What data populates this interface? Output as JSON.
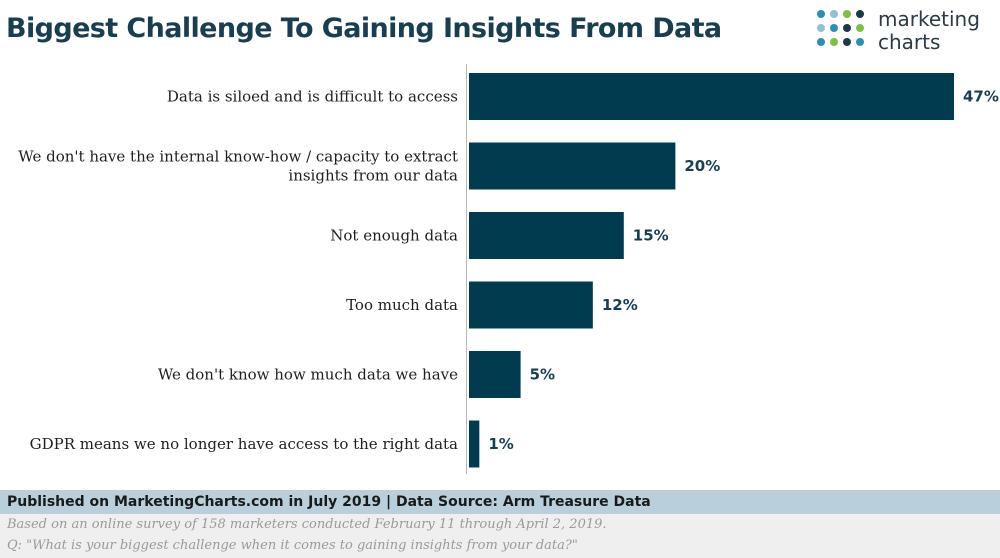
{
  "header": {
    "title": "Biggest Challenge To Gaining Insights From Data",
    "logo": {
      "line1": "marketing",
      "line2": "charts",
      "dot_colors": [
        "#2a8fb3",
        "#7cc242",
        "#1a3a4c",
        "#8fc1d6"
      ]
    }
  },
  "colors": {
    "bar": "#003b50",
    "title": "#173f51",
    "value": "#173f51"
  },
  "chart_data": {
    "type": "bar",
    "orientation": "horizontal",
    "title": "Biggest Challenge To Gaining Insights From Data",
    "xlabel": "",
    "ylabel": "",
    "unit": "%",
    "xlim": [
      0,
      47
    ],
    "grid": false,
    "categories": [
      [
        "Data is siloed and is difficult to access"
      ],
      [
        "We don't have the internal know-how / capacity to extract",
        "insights from our data"
      ],
      [
        "Not enough data"
      ],
      [
        "Too much data"
      ],
      [
        "We don't know how much data we have"
      ],
      [
        "GDPR means we no longer have access to the right data"
      ]
    ],
    "values": [
      47,
      20,
      15,
      12,
      5,
      1
    ],
    "value_labels": [
      "47%",
      "20%",
      "15%",
      "12%",
      "5%",
      "1%"
    ]
  },
  "footer": {
    "published": "Published on MarketingCharts.com in July 2019 | Data Source: Arm Treasure Data",
    "note1": "Based on an online survey of 158 marketers conducted February 11 through April 2, 2019.",
    "note2": "Q: \"What is your biggest challenge when it comes to gaining insights from your data?\""
  }
}
